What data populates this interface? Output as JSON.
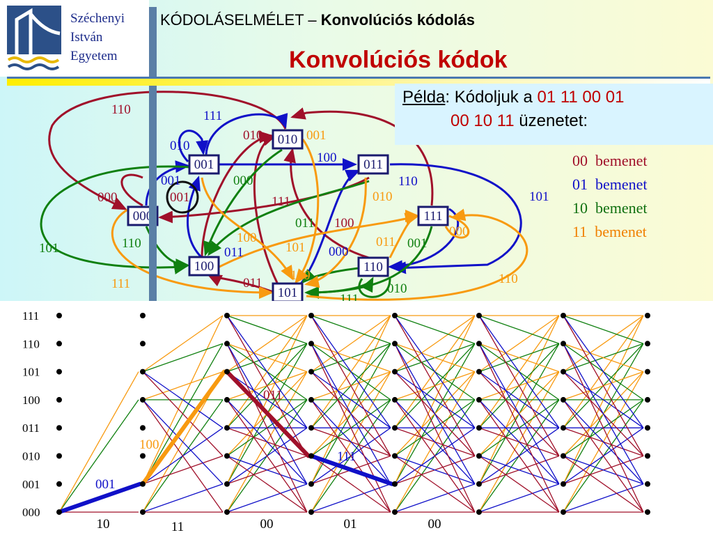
{
  "logo": {
    "line1": "Széchenyi",
    "line2": "István",
    "line3": "Egyetem"
  },
  "header": {
    "subject": "KÓDOLÁSELMÉLET – ",
    "topic": "Konvolúciós kódolás"
  },
  "title": "Konvolúciós kódok",
  "example": {
    "label": "Példa",
    "text1": ": Kódoljuk a ",
    "bits1": "01 11 00 01",
    "bits2": "00 10 11",
    "text2": " üzenetet:"
  },
  "legend": [
    {
      "code": "00",
      "text": "bemenet",
      "color": "#a0102a"
    },
    {
      "code": "01",
      "text": "bemenet",
      "color": "#1010c8"
    },
    {
      "code": "10",
      "text": "bemenet",
      "color": "#107010"
    },
    {
      "code": "11",
      "text": "bemenet",
      "color": "#f08000"
    }
  ],
  "colors": {
    "input00": "#a0102a",
    "input01": "#1010c8",
    "input10": "#108010",
    "input11": "#f89a10"
  },
  "state_diagram": {
    "states": [
      "000",
      "001",
      "010",
      "011",
      "100",
      "101",
      "110",
      "111"
    ],
    "edge_labels": [
      {
        "text": "110",
        "color": "input00"
      },
      {
        "text": "111",
        "color": "input01"
      },
      {
        "text": "010",
        "color": "input00"
      },
      {
        "text": "001",
        "color": "input11"
      },
      {
        "text": "010",
        "color": "input01"
      },
      {
        "text": "100",
        "color": "input01"
      },
      {
        "text": "101",
        "color": "input00"
      },
      {
        "text": "001",
        "color": "input01"
      },
      {
        "text": "000",
        "color": "input10"
      },
      {
        "text": "110",
        "color": "input01"
      },
      {
        "text": "000",
        "color": "input00"
      },
      {
        "text": "001",
        "color": "input00"
      },
      {
        "text": "111",
        "color": "input00"
      },
      {
        "text": "010",
        "color": "input11"
      },
      {
        "text": "101",
        "color": "input01"
      },
      {
        "text": "011",
        "color": "input10"
      },
      {
        "text": "100",
        "color": "input00"
      },
      {
        "text": "000",
        "color": "input11"
      },
      {
        "text": "110",
        "color": "input10"
      },
      {
        "text": "100",
        "color": "input11"
      },
      {
        "text": "011",
        "color": "input01"
      },
      {
        "text": "101",
        "color": "input11"
      },
      {
        "text": "000",
        "color": "input01"
      },
      {
        "text": "011",
        "color": "input11"
      },
      {
        "text": "001",
        "color": "input10"
      },
      {
        "text": "101",
        "color": "input10"
      },
      {
        "text": "111",
        "color": "input11"
      },
      {
        "text": "100",
        "color": "input11"
      },
      {
        "text": "011",
        "color": "input00"
      },
      {
        "text": "110",
        "color": "input11"
      },
      {
        "text": "010",
        "color": "input10"
      },
      {
        "text": "111",
        "color": "input10"
      }
    ]
  },
  "trellis": {
    "state_labels": [
      "111",
      "110",
      "101",
      "100",
      "011",
      "010",
      "001",
      "000"
    ],
    "input_labels": [
      "10",
      "11",
      "00",
      "01",
      "00"
    ],
    "path_labels": [
      {
        "text": "001",
        "color": "input01"
      },
      {
        "text": "100",
        "color": "input11"
      },
      {
        "text": "011",
        "color": "input00"
      },
      {
        "text": "111",
        "color": "input01"
      }
    ]
  }
}
